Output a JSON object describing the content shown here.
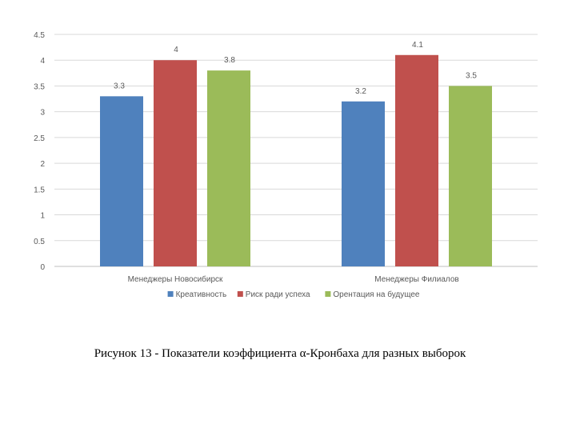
{
  "chart_data": {
    "type": "bar",
    "categories": [
      "Менеджеры Новосибирск",
      "Менеджеры Филиалов"
    ],
    "series": [
      {
        "name": "Креативность",
        "values": [
          3.3,
          3.2
        ],
        "color": "#4F81BD"
      },
      {
        "name": "Риск ради успеха",
        "values": [
          4,
          4.1
        ],
        "color": "#C0504D"
      },
      {
        "name": "Орентация на будущее",
        "values": [
          3.8,
          3.5
        ],
        "color": "#9BBB59"
      }
    ],
    "ylim": [
      0,
      4.5
    ],
    "yticks": [
      "0",
      "0.5",
      "1",
      "1.5",
      "2",
      "2.5",
      "3",
      "3.5",
      "4",
      "4.5"
    ],
    "data_labels": [
      [
        "3.3",
        "3.2"
      ],
      [
        "4",
        "4.1"
      ],
      [
        "3.8",
        "3.5"
      ]
    ],
    "grid": true,
    "legend": "bottom"
  },
  "caption": "Рисунок 13 - Показатели коэффициента α-Кронбаха для разных выборок"
}
